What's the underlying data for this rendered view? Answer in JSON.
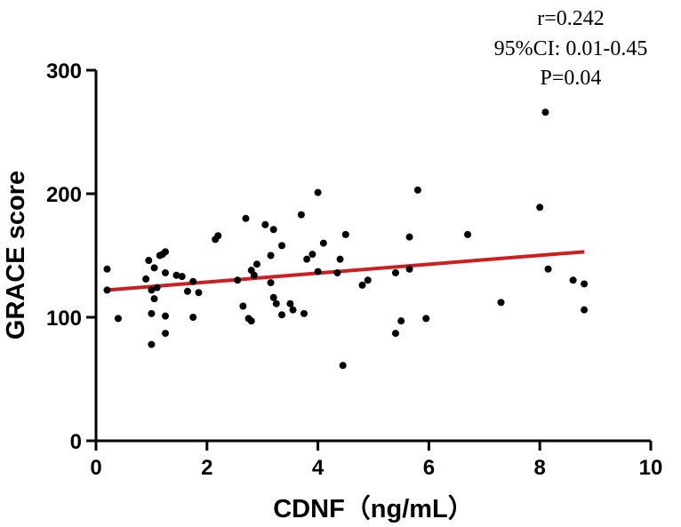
{
  "chart_data": {
    "type": "scatter",
    "title": "",
    "xlabel": "CDNF（ng/mL）",
    "ylabel": "GRACE  score",
    "xlim": [
      0,
      10
    ],
    "ylim": [
      0,
      300
    ],
    "xticks": [
      0,
      2,
      4,
      6,
      8,
      10
    ],
    "yticks": [
      0,
      100,
      200,
      300
    ],
    "grid": false,
    "annotations": [
      "r=0.242",
      "95%CI:  0.01-0.45",
      "P=0.04"
    ],
    "regression_line": {
      "x": [
        0.2,
        8.8
      ],
      "y": [
        122,
        153
      ],
      "color": "#cc1f1f"
    },
    "points": [
      [
        0.2,
        139
      ],
      [
        0.2,
        122
      ],
      [
        0.4,
        99
      ],
      [
        0.9,
        131
      ],
      [
        0.95,
        146
      ],
      [
        1.0,
        122
      ],
      [
        1.0,
        103
      ],
      [
        1.0,
        78
      ],
      [
        1.05,
        115
      ],
      [
        1.05,
        140
      ],
      [
        1.1,
        124
      ],
      [
        1.15,
        150
      ],
      [
        1.2,
        151
      ],
      [
        1.25,
        153
      ],
      [
        1.25,
        101
      ],
      [
        1.25,
        87
      ],
      [
        1.25,
        136
      ],
      [
        1.45,
        134
      ],
      [
        1.55,
        133
      ],
      [
        1.65,
        121
      ],
      [
        1.75,
        129
      ],
      [
        1.75,
        100
      ],
      [
        1.85,
        120
      ],
      [
        2.15,
        163
      ],
      [
        2.2,
        166
      ],
      [
        2.55,
        130
      ],
      [
        2.65,
        109
      ],
      [
        2.7,
        180
      ],
      [
        2.75,
        99
      ],
      [
        2.8,
        97
      ],
      [
        2.8,
        138
      ],
      [
        2.85,
        134
      ],
      [
        2.9,
        143
      ],
      [
        3.05,
        175
      ],
      [
        3.15,
        150
      ],
      [
        3.15,
        128
      ],
      [
        3.2,
        171
      ],
      [
        3.2,
        116
      ],
      [
        3.25,
        111
      ],
      [
        3.35,
        158
      ],
      [
        3.35,
        102
      ],
      [
        3.5,
        111
      ],
      [
        3.55,
        106
      ],
      [
        3.7,
        183
      ],
      [
        3.75,
        103
      ],
      [
        3.8,
        147
      ],
      [
        3.9,
        151
      ],
      [
        4.0,
        201
      ],
      [
        4.0,
        137
      ],
      [
        4.1,
        160
      ],
      [
        4.35,
        136
      ],
      [
        4.4,
        147
      ],
      [
        4.45,
        61
      ],
      [
        4.5,
        167
      ],
      [
        4.8,
        126
      ],
      [
        4.9,
        130
      ],
      [
        5.4,
        136
      ],
      [
        5.4,
        87
      ],
      [
        5.5,
        97
      ],
      [
        5.65,
        165
      ],
      [
        5.65,
        139
      ],
      [
        5.8,
        203
      ],
      [
        5.95,
        99
      ],
      [
        6.7,
        167
      ],
      [
        7.3,
        112
      ],
      [
        8.0,
        189
      ],
      [
        8.1,
        266
      ],
      [
        8.15,
        139
      ],
      [
        8.6,
        130
      ],
      [
        8.8,
        127
      ],
      [
        8.8,
        106
      ]
    ]
  }
}
